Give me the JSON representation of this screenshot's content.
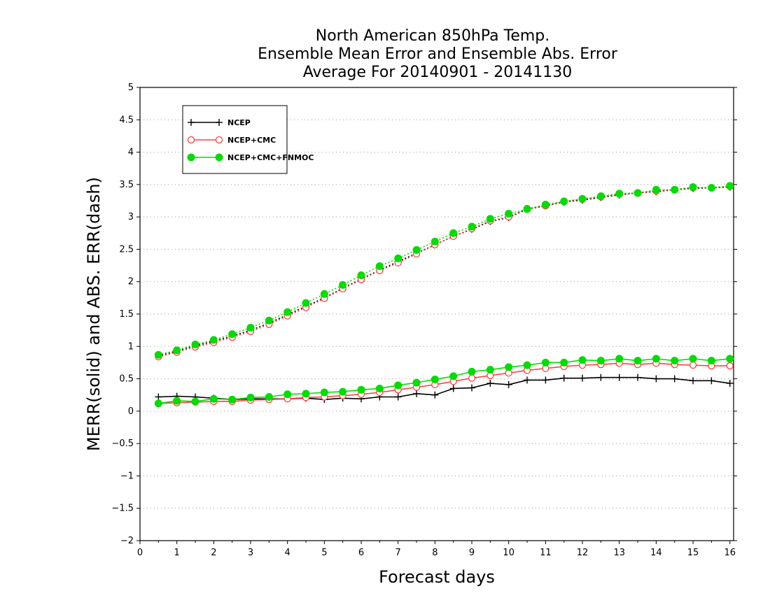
{
  "chart_data": {
    "type": "line",
    "title": [
      "North American 850hPa Temp.",
      "Ensemble Mean Error and Ensemble Abs. Error",
      "Average For 20140901 - 20141130"
    ],
    "xlabel": "Forecast days",
    "ylabel": "MERR(solid) and ABS. ERR(dash)",
    "xlim": [
      0,
      16.1
    ],
    "ylim": [
      -2,
      5
    ],
    "xticks": [
      "0",
      "1",
      "2",
      "3",
      "4",
      "5",
      "6",
      "7",
      "8",
      "9",
      "10",
      "11",
      "12",
      "13",
      "14",
      "15",
      "16"
    ],
    "yticks": [
      "−2",
      "−1.5",
      "−1",
      "−0.5",
      "0",
      "0.5",
      "1",
      "1.5",
      "2",
      "2.5",
      "3",
      "3.5",
      "4",
      "4.5",
      "5"
    ],
    "grid": "horizontal dotted",
    "legend_position": "top-left",
    "x": [
      0.5,
      1.0,
      1.5,
      2.0,
      2.5,
      3.0,
      3.5,
      4.0,
      4.5,
      5.0,
      5.5,
      6.0,
      6.5,
      7.0,
      7.5,
      8.0,
      8.5,
      9.0,
      9.5,
      10.0,
      10.5,
      11.0,
      11.5,
      12.0,
      12.5,
      13.0,
      13.5,
      14.0,
      14.5,
      15.0,
      15.5,
      16.0
    ],
    "series": [
      {
        "name": "NCEP",
        "color": "#000000",
        "marker": "plus",
        "merr": [
          0.22,
          0.23,
          0.22,
          0.2,
          0.18,
          0.19,
          0.19,
          0.19,
          0.2,
          0.18,
          0.2,
          0.19,
          0.22,
          0.22,
          0.27,
          0.25,
          0.35,
          0.36,
          0.43,
          0.41,
          0.48,
          0.48,
          0.51,
          0.51,
          0.52,
          0.52,
          0.52,
          0.5,
          0.5,
          0.47,
          0.47,
          0.43
        ],
        "abs_err": [
          0.85,
          0.93,
          1.01,
          1.08,
          1.16,
          1.25,
          1.36,
          1.49,
          1.62,
          1.75,
          1.9,
          2.04,
          2.18,
          2.31,
          2.44,
          2.57,
          2.7,
          2.81,
          2.93,
          2.99,
          3.12,
          3.17,
          3.23,
          3.26,
          3.3,
          3.34,
          3.37,
          3.39,
          3.42,
          3.44,
          3.45,
          3.46
        ]
      },
      {
        "name": "NCEP+CMC",
        "color": "#ff4040",
        "marker": "open-circle",
        "merr": [
          0.12,
          0.13,
          0.14,
          0.15,
          0.15,
          0.17,
          0.18,
          0.19,
          0.21,
          0.22,
          0.24,
          0.26,
          0.29,
          0.33,
          0.37,
          0.41,
          0.46,
          0.51,
          0.55,
          0.59,
          0.63,
          0.66,
          0.69,
          0.71,
          0.72,
          0.74,
          0.72,
          0.74,
          0.72,
          0.71,
          0.7,
          0.7
        ],
        "abs_err": [
          0.84,
          0.91,
          0.99,
          1.06,
          1.14,
          1.23,
          1.34,
          1.47,
          1.6,
          1.74,
          1.89,
          2.03,
          2.17,
          2.29,
          2.43,
          2.57,
          2.7,
          2.82,
          2.94,
          3.0,
          3.13,
          3.17,
          3.24,
          3.27,
          3.31,
          3.35,
          3.37,
          3.4,
          3.42,
          3.45,
          3.45,
          3.47
        ]
      },
      {
        "name": "NCEP+CMC+FNMOC",
        "color": "#00dd00",
        "marker": "filled-circle",
        "merr": [
          0.12,
          0.16,
          0.15,
          0.19,
          0.18,
          0.21,
          0.22,
          0.26,
          0.27,
          0.29,
          0.3,
          0.33,
          0.35,
          0.4,
          0.44,
          0.49,
          0.54,
          0.61,
          0.64,
          0.68,
          0.71,
          0.75,
          0.75,
          0.79,
          0.78,
          0.81,
          0.78,
          0.81,
          0.78,
          0.81,
          0.78,
          0.81
        ],
        "abs_err": [
          0.87,
          0.94,
          1.03,
          1.1,
          1.19,
          1.29,
          1.4,
          1.53,
          1.67,
          1.81,
          1.95,
          2.1,
          2.24,
          2.36,
          2.49,
          2.62,
          2.75,
          2.85,
          2.97,
          3.05,
          3.12,
          3.19,
          3.24,
          3.28,
          3.32,
          3.36,
          3.37,
          3.42,
          3.42,
          3.46,
          3.45,
          3.48
        ]
      }
    ]
  }
}
